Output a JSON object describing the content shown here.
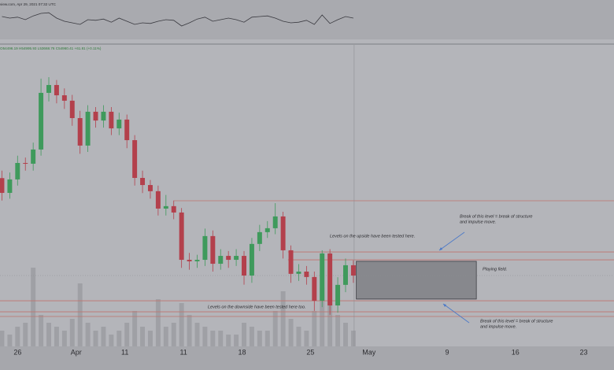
{
  "chart_data": {
    "type": "candlestick",
    "source": "view.com, Apr 29, 2021 07:32 UTC",
    "ohlc_label": "O54496.19 H54995.93 L53668.76 C54960.41 +61.81 (+0.11%)",
    "x": [
      -1.6,
      -0.8,
      0,
      0.8,
      1.6,
      2.4,
      3.2,
      4,
      4.8,
      5.6,
      6.4,
      7.2,
      8,
      8.8,
      9.6,
      10.4,
      11.2,
      12,
      12.8,
      13.6,
      14.4,
      15.2,
      16,
      16.8,
      17.6,
      18.4,
      19.2,
      20,
      20.8,
      21.6,
      22.4,
      23.2,
      24,
      24.8,
      25.6,
      26.4,
      27.2,
      28,
      28.8,
      29.6,
      30.4,
      31.2,
      32,
      32.8,
      33.6,
      34.4
    ],
    "open": [
      60000,
      59210,
      59930,
      60810,
      60770,
      61530,
      64560,
      64980,
      64430,
      64140,
      63210,
      61740,
      63550,
      63080,
      63550,
      62660,
      63130,
      62030,
      60010,
      59630,
      59300,
      58370,
      58500,
      58160,
      55630,
      55550,
      55630,
      56900,
      55420,
      55840,
      55630,
      55840,
      54790,
      56480,
      57110,
      57320,
      57950,
      56140,
      54880,
      55000,
      54710,
      53440,
      55970,
      53190,
      54290,
      55340
    ],
    "high": [
      60400,
      60300,
      61200,
      61100,
      61900,
      65320,
      65400,
      65250,
      64800,
      64450,
      63600,
      63900,
      63800,
      63900,
      63800,
      63500,
      63400,
      62300,
      60400,
      59900,
      59600,
      59100,
      58800,
      58400,
      56000,
      55900,
      57300,
      57200,
      56200,
      56100,
      56200,
      56100,
      56800,
      57500,
      57700,
      58660,
      58200,
      56400,
      55400,
      55300,
      55000,
      56140,
      56200,
      54700,
      55700,
      55600
    ],
    "low": [
      58800,
      58900,
      59600,
      60400,
      60400,
      61200,
      64100,
      64000,
      63700,
      62800,
      61300,
      61400,
      62700,
      62700,
      62300,
      62300,
      61600,
      59600,
      59200,
      58900,
      58000,
      58000,
      57800,
      55200,
      55100,
      55200,
      55300,
      55000,
      55100,
      55200,
      55300,
      54300,
      54400,
      56100,
      56800,
      57000,
      55700,
      54400,
      54500,
      54300,
      52900,
      53100,
      52690,
      52800,
      53900,
      54400
    ],
    "close": [
      59210,
      59930,
      60810,
      60770,
      61530,
      64560,
      64980,
      64430,
      64140,
      63210,
      61740,
      63550,
      63080,
      63550,
      62660,
      63130,
      62030,
      60010,
      59630,
      59300,
      58370,
      58500,
      58160,
      55630,
      55550,
      55630,
      56900,
      55420,
      55840,
      55630,
      55840,
      54790,
      56480,
      57110,
      57320,
      57950,
      56140,
      54880,
      55000,
      54710,
      53440,
      55970,
      53190,
      54290,
      55340,
      54790
    ],
    "up_color": "#3f9a5c",
    "down_color": "#b3404c",
    "xlim": [
      -1.8,
      61.1
    ],
    "ylim": [
      51000,
      67000
    ],
    "xticks": [
      {
        "value": 0,
        "label": "26"
      },
      {
        "value": 6,
        "label": "Apr"
      },
      11,
      {
        "value": 17,
        "label": "11"
      },
      {
        "value": 23,
        "label": "18"
      },
      {
        "value": 30,
        "label": "25"
      },
      {
        "value": 36,
        "label": "May"
      },
      {
        "value": 44,
        "label": "9"
      },
      {
        "value": 51,
        "label": "16"
      },
      {
        "value": 58,
        "label": "23"
      }
    ],
    "volume": {
      "values": [
        20,
        15,
        25,
        30,
        100,
        40,
        30,
        25,
        20,
        35,
        80,
        30,
        20,
        25,
        15,
        20,
        30,
        45,
        25,
        20,
        60,
        25,
        30,
        55,
        40,
        30,
        25,
        20,
        20,
        15,
        15,
        30,
        25,
        20,
        20,
        45,
        70,
        35,
        25,
        20,
        45,
        75,
        80,
        40,
        30,
        20
      ],
      "ylim": [
        0,
        100
      ],
      "color": "#9a9ba0"
    },
    "oscillator": {
      "values": [
        60,
        55,
        58,
        50,
        62,
        70,
        72,
        55,
        45,
        40,
        35,
        50,
        48,
        52,
        42,
        55,
        45,
        35,
        40,
        38,
        45,
        50,
        48,
        30,
        40,
        52,
        58,
        45,
        50,
        55,
        50,
        42,
        58,
        60,
        62,
        55,
        45,
        40,
        42,
        48,
        35,
        65,
        38,
        50,
        60,
        55
      ],
      "ylim": [
        0,
        100
      ],
      "color": "#3a3a40"
    },
    "level_color": "#c0736d",
    "levels": [
      {
        "value": 58790,
        "from": 16
      },
      {
        "value": 56050,
        "from": 27.7
      },
      {
        "value": 55630,
        "from": 27.7
      },
      {
        "value": 53440,
        "from": -1.8
      },
      {
        "value": 52850,
        "from": -1.8
      },
      {
        "value": 52600,
        "from": -1.8
      }
    ],
    "zone": {
      "low": 53530,
      "high": 55550,
      "from": 34.7,
      "to": 47,
      "label": "Playing field."
    },
    "annotations": {
      "upper_break": [
        "Break of this level = break of structure",
        "and impulse move."
      ],
      "upside": "Levels on the upside have been tested here.",
      "downside": "Levels on the downside have been tested here too.",
      "lower_break": [
        "Break of this level = break of structure",
        "and impulse move."
      ]
    }
  }
}
